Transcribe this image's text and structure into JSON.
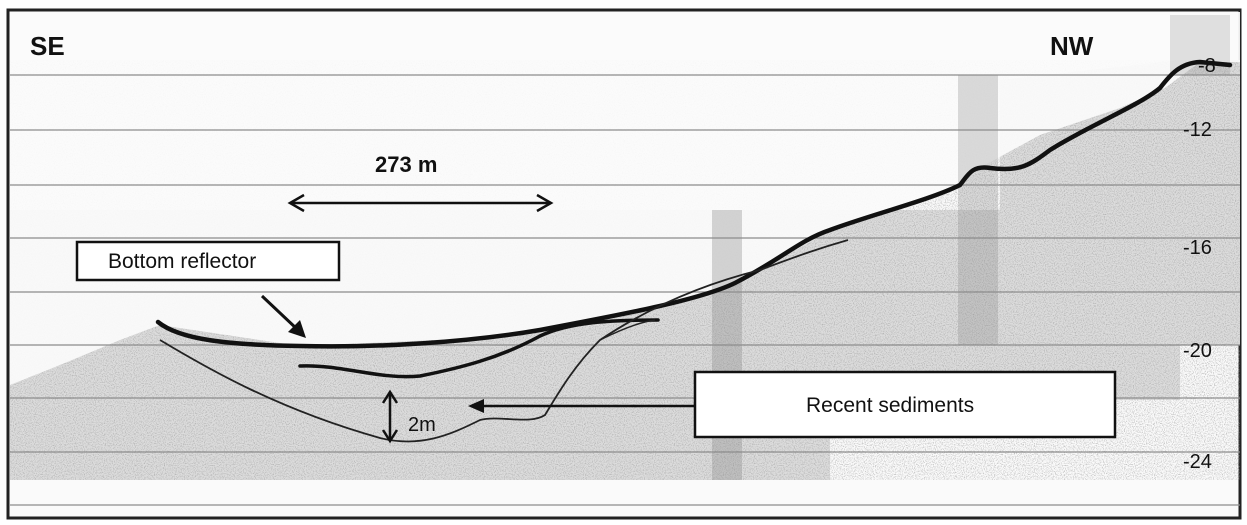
{
  "figure": {
    "direction_left": "SE",
    "direction_right": "NW",
    "scale_label": "273 m",
    "thickness_label": "2m",
    "depth_ticks": [
      "-8",
      "-12",
      "-16",
      "-20",
      "-24"
    ],
    "annotations": {
      "bottom_reflector": "Bottom reflector",
      "recent_sediments": "Recent sediments"
    },
    "colors": {
      "background": "#f2f2f2",
      "noise": "#9a9a9a",
      "line": "#111111",
      "gridline": "#8c8c8c"
    }
  }
}
